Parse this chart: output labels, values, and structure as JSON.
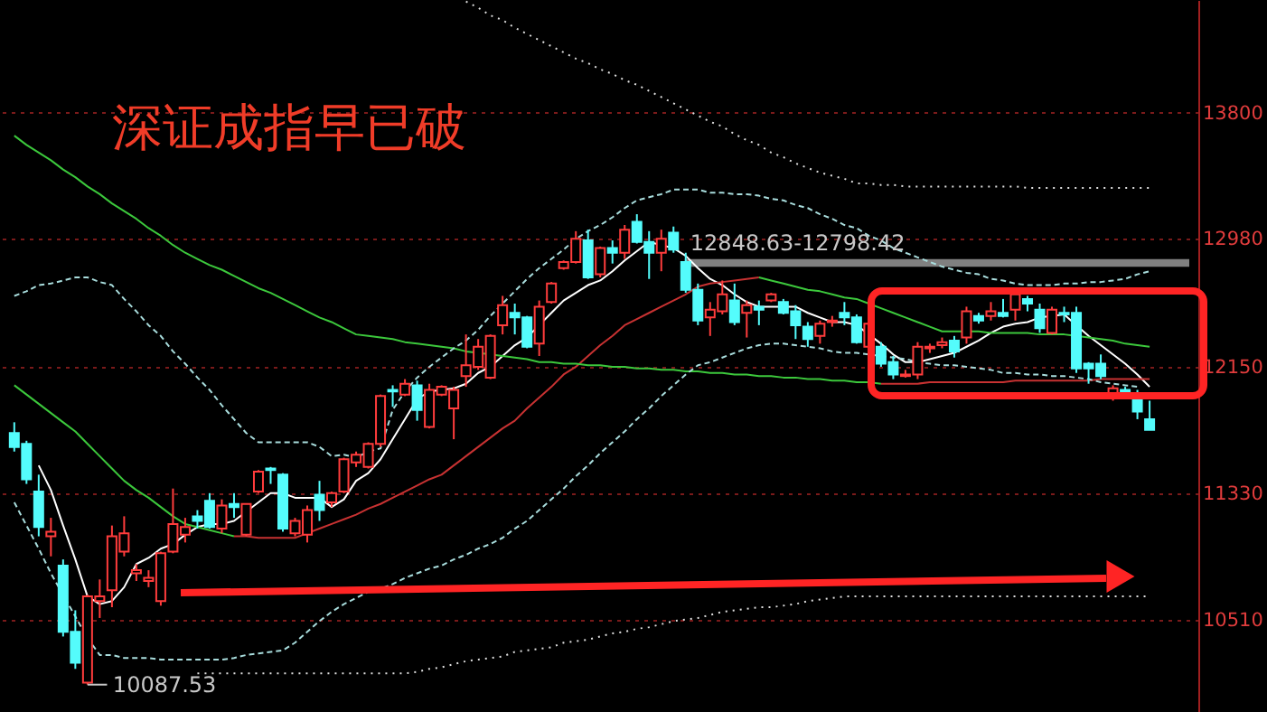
{
  "chart_data": {
    "type": "candlestick",
    "title": "深证成指早已破",
    "categories": [
      null,
      null,
      null,
      null,
      null,
      null,
      null,
      null,
      null,
      null,
      null,
      null,
      null,
      null,
      null,
      null,
      null,
      null,
      null,
      null,
      null,
      null,
      null,
      null,
      null,
      null,
      null,
      null,
      null,
      null,
      null,
      null,
      null,
      null,
      null,
      null,
      null,
      null,
      null,
      null,
      null,
      null,
      null,
      null,
      null,
      null,
      null,
      null,
      null,
      null,
      null,
      null,
      null,
      null,
      null,
      null,
      null,
      null,
      null,
      null,
      null,
      null,
      null,
      null,
      null,
      null,
      null,
      null,
      null,
      null,
      null,
      null,
      null,
      null,
      null,
      null,
      null,
      null,
      null,
      null,
      null,
      null,
      null,
      null,
      null,
      null,
      null,
      null,
      null,
      null,
      null,
      null,
      null,
      null
    ],
    "ohlc": [
      [
        11720,
        11790,
        11600,
        11630
      ],
      [
        11650,
        11670,
        11390,
        11420
      ],
      [
        11340,
        11450,
        11050,
        11110
      ],
      [
        11050,
        11170,
        10920,
        11080
      ],
      [
        10860,
        10900,
        10400,
        10430
      ],
      [
        10430,
        10570,
        10190,
        10230
      ],
      [
        10100,
        10670,
        10087.53,
        10660
      ],
      [
        10630,
        10770,
        10520,
        10660
      ],
      [
        10700,
        11120,
        10590,
        11050
      ],
      [
        10950,
        11180,
        10920,
        11070
      ],
      [
        10810,
        10870,
        10760,
        10830
      ],
      [
        10760,
        10830,
        10720,
        10780
      ],
      [
        10630,
        10950,
        10600,
        10940
      ],
      [
        10950,
        11360,
        10940,
        11130
      ],
      [
        11060,
        11170,
        11010,
        11110
      ],
      [
        11180,
        11220,
        11100,
        11150
      ],
      [
        11280,
        11330,
        11100,
        11110
      ],
      [
        11100,
        11290,
        11070,
        11250
      ],
      [
        11260,
        11330,
        11170,
        11240
      ],
      [
        11060,
        11260,
        11050,
        11260
      ],
      [
        11340,
        11480,
        11330,
        11470
      ],
      [
        11490,
        11500,
        11390,
        11480
      ],
      [
        11450,
        11460,
        11080,
        11100
      ],
      [
        11070,
        11170,
        11050,
        11150
      ],
      [
        11060,
        11250,
        11010,
        11220
      ],
      [
        11320,
        11410,
        11150,
        11220
      ],
      [
        11270,
        11340,
        11240,
        11330
      ],
      [
        11340,
        11560,
        11330,
        11550
      ],
      [
        11530,
        11600,
        11500,
        11580
      ],
      [
        11500,
        11660,
        11490,
        11650
      ],
      [
        11650,
        11970,
        11630,
        11960
      ],
      [
        12000,
        12030,
        11890,
        11990
      ],
      [
        11970,
        12070,
        11960,
        12040
      ],
      [
        12030,
        12060,
        11800,
        11870
      ],
      [
        11760,
        12040,
        11750,
        12000
      ],
      [
        11970,
        12030,
        11960,
        12020
      ],
      [
        11880,
        12020,
        11680,
        12000
      ],
      [
        12090,
        12360,
        12020,
        12160
      ],
      [
        12150,
        12330,
        12130,
        12280
      ],
      [
        12080,
        12360,
        12070,
        12350
      ],
      [
        12420,
        12610,
        12360,
        12550
      ],
      [
        12500,
        12560,
        12360,
        12470
      ],
      [
        12470,
        12480,
        12270,
        12280
      ],
      [
        12300,
        12580,
        12220,
        12540
      ],
      [
        12570,
        12700,
        12560,
        12690
      ],
      [
        12790,
        12840,
        12780,
        12830
      ],
      [
        12830,
        13030,
        12820,
        12980
      ],
      [
        12970,
        13040,
        12720,
        12730
      ],
      [
        12750,
        12930,
        12730,
        12920
      ],
      [
        12920,
        12970,
        12820,
        12890
      ],
      [
        12890,
        13070,
        12850,
        13040
      ],
      [
        13090,
        13140,
        12950,
        12960
      ],
      [
        12960,
        13030,
        12720,
        12890
      ],
      [
        12890,
        13040,
        12770,
        12980
      ],
      [
        13020,
        13060,
        12890,
        12910
      ],
      [
        12830,
        12890,
        12630,
        12650
      ],
      [
        12650,
        12690,
        12420,
        12450
      ],
      [
        12470,
        12570,
        12350,
        12520
      ],
      [
        12510,
        12710,
        12490,
        12620
      ],
      [
        12580,
        12690,
        12420,
        12440
      ],
      [
        12500,
        12580,
        12340,
        12550
      ],
      [
        12540,
        12580,
        12420,
        12520
      ],
      [
        12580,
        12630,
        12570,
        12620
      ],
      [
        12570,
        12590,
        12490,
        12500
      ],
      [
        12510,
        12550,
        12330,
        12420
      ],
      [
        12410,
        12440,
        12280,
        12330
      ],
      [
        12350,
        12450,
        12300,
        12430
      ],
      [
        12440,
        12480,
        12410,
        12450
      ],
      [
        12500,
        12570,
        12420,
        12470
      ],
      [
        12470,
        12490,
        12300,
        12310
      ],
      [
        12280,
        12470,
        12180,
        12430
      ],
      [
        12280,
        12310,
        12150,
        12170
      ],
      [
        12180,
        12220,
        12070,
        12100
      ],
      [
        12090,
        12130,
        12080,
        12100
      ],
      [
        12100,
        12310,
        12070,
        12280
      ],
      [
        12270,
        12300,
        12240,
        12280
      ],
      [
        12290,
        12340,
        12270,
        12310
      ],
      [
        12320,
        12350,
        12210,
        12250
      ],
      [
        12340,
        12540,
        12300,
        12510
      ],
      [
        12480,
        12500,
        12430,
        12450
      ],
      [
        12480,
        12570,
        12450,
        12510
      ],
      [
        12500,
        12590,
        12470,
        12480
      ],
      [
        12520,
        12630,
        12450,
        12620
      ],
      [
        12590,
        12610,
        12510,
        12560
      ],
      [
        12520,
        12560,
        12370,
        12400
      ],
      [
        12370,
        12540,
        12360,
        12520
      ],
      [
        12500,
        12540,
        12440,
        12490
      ],
      [
        12500,
        12540,
        12110,
        12140
      ],
      [
        12170,
        12180,
        12040,
        12140
      ],
      [
        12170,
        12230,
        12070,
        12090
      ],
      [
        11970,
        12030,
        11930,
        12010
      ],
      [
        12000,
        12020,
        11960,
        11990
      ],
      [
        11950,
        12000,
        11810,
        11860
      ],
      [
        11810,
        11930,
        11740,
        11740
      ]
    ],
    "colors": [
      "#54fcfc",
      "#54fcfc",
      "#54fcfc",
      "#ff3c3c",
      "#54fcfc",
      "#54fcfc",
      "#ff3c3c",
      "#ff3c3c",
      "#ff3c3c",
      "#ff3c3c",
      "#ff3c3c",
      "#ff3c3c",
      "#ff3c3c",
      "#ff3c3c",
      "#ff3c3c",
      "#54fcfc",
      "#54fcfc",
      "#ff3c3c",
      "#54fcfc",
      "#ff3c3c",
      "#ff3c3c",
      "#54fcfc",
      "#54fcfc",
      "#ff3c3c",
      "#ff3c3c",
      "#54fcfc",
      "#ff3c3c",
      "#ff3c3c",
      "#ff3c3c",
      "#ff3c3c",
      "#ff3c3c",
      "#54fcfc",
      "#ff3c3c",
      "#54fcfc",
      "#ff3c3c",
      "#ff3c3c",
      "#ff3c3c",
      "#ff3c3c",
      "#ff3c3c",
      "#ff3c3c",
      "#ff3c3c",
      "#54fcfc",
      "#54fcfc",
      "#ff3c3c",
      "#ff3c3c",
      "#ff3c3c",
      "#ff3c3c",
      "#54fcfc",
      "#ff3c3c",
      "#54fcfc",
      "#ff3c3c",
      "#54fcfc",
      "#54fcfc",
      "#ff3c3c",
      "#54fcfc",
      "#54fcfc",
      "#54fcfc",
      "#ff3c3c",
      "#ff3c3c",
      "#54fcfc",
      "#ff3c3c",
      "#54fcfc",
      "#ff3c3c",
      "#54fcfc",
      "#54fcfc",
      "#54fcfc",
      "#ff3c3c",
      "#ff3c3c",
      "#54fcfc",
      "#54fcfc",
      "#ff3c3c",
      "#54fcfc",
      "#54fcfc",
      "#ff3c3c",
      "#ff3c3c",
      "#ff3c3c",
      "#ff3c3c",
      "#54fcfc",
      "#ff3c3c",
      "#54fcfc",
      "#ff3c3c",
      "#54fcfc",
      "#ff3c3c",
      "#54fcfc",
      "#54fcfc",
      "#ff3c3c",
      "#54fcfc",
      "#54fcfc",
      "#54fcfc",
      "#54fcfc",
      "#ff3c3c",
      "#54fcfc",
      "#54fcfc",
      "#54fcfc"
    ],
    "series": [
      {
        "type": "line",
        "color": "#ffffff",
        "line_style": "solid",
        "values": [
          null,
          null,
          11510,
          11350,
          11120,
          10900,
          10660,
          10610,
          10630,
          10720,
          10870,
          10910,
          10970,
          11000,
          11060,
          11110,
          11130,
          11130,
          11150,
          11210,
          11270,
          11330,
          11330,
          11300,
          11300,
          11300,
          11240,
          11290,
          11410,
          11460,
          11550,
          11680,
          11810,
          11940,
          11990,
          12000,
          12010,
          12040,
          12110,
          12150,
          12220,
          12290,
          12340,
          12420,
          12500,
          12580,
          12630,
          12680,
          12710,
          12770,
          12840,
          12900,
          12960,
          12940,
          12920,
          12870,
          12790,
          12720,
          12680,
          12620,
          12570,
          12540,
          12540,
          12540,
          12540,
          12500,
          12470,
          12440,
          12440,
          12420,
          12360,
          12300,
          12230,
          12180,
          12180,
          12200,
          12220,
          12240,
          12280,
          12320,
          12370,
          12410,
          12430,
          12440,
          12470,
          12480,
          12490,
          12420,
          12350,
          12290,
          12230,
          12170,
          12100,
          12020
        ]
      },
      {
        "type": "line",
        "color": "#3cc83c",
        "line_style": "solid",
        "values": [
          12030,
          11970,
          11910,
          11850,
          11790,
          11730,
          11650,
          11570,
          11490,
          11410,
          11350,
          11300,
          11240,
          11180,
          11130,
          11110,
          11090,
          11070,
          11050,
          null,
          null,
          null,
          null,
          null,
          null,
          null,
          null,
          null,
          null,
          null,
          null,
          null,
          null,
          null,
          null,
          null,
          null,
          null,
          null,
          null,
          null,
          null,
          null,
          null,
          null,
          null,
          null,
          null,
          null,
          null,
          null,
          null,
          null,
          null,
          null,
          null,
          null,
          null,
          null,
          null,
          null,
          null,
          null,
          null,
          null,
          null,
          null,
          null,
          null,
          null,
          null,
          null,
          null,
          null,
          null,
          null,
          null,
          null,
          null,
          null,
          null,
          null,
          null,
          null,
          null,
          null,
          null,
          null,
          null,
          null,
          null,
          null,
          null,
          null
        ]
      },
      {
        "type": "line",
        "color": "#c83232",
        "line_style": "solid",
        "values": [
          null,
          null,
          null,
          null,
          null,
          null,
          null,
          null,
          null,
          null,
          null,
          null,
          null,
          null,
          null,
          null,
          null,
          null,
          11050,
          11050,
          11040,
          11040,
          11040,
          11040,
          11070,
          11100,
          11130,
          11160,
          11190,
          11230,
          11260,
          11300,
          11340,
          11380,
          11420,
          11450,
          11510,
          11570,
          11630,
          11690,
          11750,
          11800,
          11880,
          11950,
          12020,
          12100,
          12150,
          12220,
          12290,
          12350,
          12420,
          12460,
          12500,
          12540,
          12580,
          12620,
          12670,
          12690,
          12700,
          12710,
          12720,
          12730,
          null,
          null,
          null,
          null,
          null,
          null,
          null,
          null,
          null,
          null,
          null,
          null,
          null,
          null,
          null,
          null,
          null,
          null,
          null,
          null,
          null,
          null,
          null,
          null,
          null,
          null,
          null,
          null,
          null,
          null,
          null,
          null
        ]
      },
      {
        "type": "line",
        "color": "#3cc83c",
        "line_style": "solid",
        "values": [
          null,
          null,
          null,
          null,
          null,
          null,
          null,
          null,
          null,
          null,
          null,
          null,
          null,
          null,
          null,
          null,
          null,
          null,
          null,
          null,
          null,
          null,
          null,
          null,
          null,
          null,
          null,
          null,
          null,
          null,
          null,
          null,
          null,
          null,
          null,
          null,
          null,
          null,
          null,
          null,
          null,
          null,
          null,
          null,
          null,
          null,
          null,
          null,
          null,
          null,
          null,
          null,
          null,
          null,
          null,
          null,
          null,
          null,
          null,
          null,
          null,
          12730,
          12710,
          12690,
          12670,
          12650,
          12640,
          12620,
          12600,
          12590,
          12560,
          12530,
          12500,
          12470,
          12440,
          12410,
          12380,
          12380,
          12380,
          12380,
          12370,
          12370,
          12370,
          12370,
          12360,
          12360,
          12360,
          12350,
          12340,
          12330,
          12320,
          12300,
          12290,
          12280
        ]
      },
      {
        "type": "line",
        "color": "#3cc83c",
        "line_style": "solid",
        "values": [
          13650,
          13590,
          13540,
          13490,
          13430,
          13380,
          13320,
          13270,
          13210,
          13160,
          13110,
          13050,
          13000,
          12940,
          12890,
          12850,
          12810,
          12780,
          12740,
          12700,
          12660,
          12630,
          12590,
          12550,
          12510,
          12470,
          12440,
          12400,
          12360,
          12350,
          12340,
          12330,
          12310,
          12300,
          12290,
          12280,
          12270,
          12250,
          12240,
          12230,
          12220,
          12210,
          12200,
          12180,
          12180,
          12170,
          12170,
          12160,
          12160,
          12150,
          12150,
          12140,
          12140,
          12130,
          12130,
          12120,
          12120,
          12110,
          12110,
          12100,
          12100,
          12090,
          12090,
          12080,
          12080,
          12070,
          12070,
          12060,
          12060,
          12050,
          12050,
          12040,
          null,
          null,
          null,
          null,
          null,
          null,
          null,
          null,
          null,
          null,
          null,
          null,
          null,
          null,
          null,
          null,
          null,
          null,
          null,
          null,
          null,
          null
        ]
      },
      {
        "type": "line",
        "color": "#c83232",
        "line_style": "solid",
        "values": [
          null,
          null,
          null,
          null,
          null,
          null,
          null,
          null,
          null,
          null,
          null,
          null,
          null,
          null,
          null,
          null,
          null,
          null,
          null,
          null,
          null,
          null,
          null,
          null,
          null,
          null,
          null,
          null,
          null,
          null,
          null,
          null,
          null,
          null,
          null,
          null,
          null,
          null,
          null,
          null,
          null,
          null,
          null,
          null,
          null,
          null,
          null,
          null,
          null,
          null,
          null,
          null,
          null,
          null,
          null,
          null,
          null,
          null,
          null,
          null,
          null,
          null,
          null,
          null,
          null,
          null,
          null,
          null,
          null,
          null,
          null,
          12040,
          12040,
          12040,
          12040,
          12050,
          12050,
          12050,
          12050,
          12050,
          12050,
          12050,
          12060,
          12060,
          12060,
          12060,
          12060,
          12060,
          12060,
          12070,
          12070,
          12070,
          12070,
          12070
        ]
      },
      {
        "type": "line",
        "color": "#a8dcdc",
        "line_style": "dashed",
        "values": [
          12610,
          12640,
          12680,
          12690,
          12710,
          12730,
          12730,
          12700,
          12680,
          12590,
          12510,
          12420,
          12350,
          12250,
          12170,
          12080,
          12000,
          11900,
          11810,
          11720,
          11660,
          11660,
          11660,
          11660,
          11660,
          11630,
          11570,
          11580,
          11560,
          11600,
          11620,
          11870,
          11990,
          12080,
          12150,
          12210,
          12270,
          12320,
          12390,
          12480,
          12560,
          12640,
          12720,
          12790,
          12850,
          12910,
          12980,
          13030,
          13070,
          13120,
          13180,
          13230,
          13250,
          13270,
          13300,
          13300,
          13300,
          13280,
          13280,
          13270,
          13270,
          13260,
          13240,
          13230,
          13200,
          13180,
          13140,
          13110,
          13070,
          13050,
          13000,
          12970,
          12920,
          12890,
          12860,
          12830,
          12800,
          12780,
          12760,
          12750,
          12720,
          12710,
          12690,
          12680,
          12680,
          12680,
          12690,
          12690,
          12700,
          12700,
          12710,
          12720,
          12750,
          12770
        ]
      },
      {
        "type": "line",
        "color": "#a8dcdc",
        "line_style": "dashed",
        "values": [
          11270,
          11120,
          10970,
          10810,
          10670,
          10530,
          10390,
          10280,
          10280,
          10260,
          10260,
          10260,
          10250,
          10250,
          10250,
          10250,
          10250,
          10250,
          10260,
          10280,
          10290,
          10300,
          10310,
          10360,
          10430,
          10500,
          10560,
          10610,
          10650,
          10690,
          10710,
          10740,
          10780,
          10810,
          10840,
          10860,
          10900,
          10930,
          10970,
          11000,
          11040,
          11100,
          11150,
          11220,
          11290,
          11360,
          11440,
          11510,
          11590,
          11660,
          11730,
          11810,
          11880,
          11960,
          12030,
          12100,
          12160,
          12180,
          12210,
          12240,
          12270,
          12290,
          12300,
          12300,
          12290,
          12280,
          12270,
          12250,
          12240,
          12240,
          12230,
          12220,
          12210,
          12200,
          12180,
          12170,
          12160,
          12160,
          12150,
          12140,
          12130,
          12110,
          12110,
          12100,
          12100,
          12090,
          12090,
          12080,
          12070,
          12050,
          12040,
          12030,
          12020,
          null
        ]
      },
      {
        "type": "line",
        "color": "#e0e0e0",
        "line_style": "dotted",
        "values": [
          null,
          null,
          null,
          null,
          null,
          null,
          null,
          null,
          null,
          null,
          null,
          null,
          null,
          null,
          null,
          null,
          null,
          null,
          null,
          null,
          null,
          null,
          null,
          null,
          null,
          null,
          null,
          null,
          null,
          null,
          null,
          null,
          null,
          null,
          null,
          null,
          null,
          14520,
          14480,
          14430,
          14400,
          14350,
          14310,
          14270,
          14230,
          14190,
          14150,
          14120,
          14080,
          14050,
          14010,
          13980,
          13940,
          13900,
          13860,
          13820,
          13780,
          13740,
          13710,
          13660,
          13620,
          13590,
          13540,
          13510,
          13470,
          13440,
          13410,
          13390,
          13370,
          13340,
          13340,
          13330,
          13330,
          13320,
          13320,
          13320,
          13320,
          13320,
          13320,
          13320,
          13320,
          13320,
          13320,
          13310,
          13310,
          13310,
          13310,
          13310,
          13310,
          13310,
          13310,
          13310,
          13310,
          13310
        ]
      },
      {
        "type": "line",
        "color": "#e0e0e0",
        "line_style": "dotted",
        "values": [
          null,
          null,
          null,
          null,
          null,
          null,
          null,
          null,
          null,
          null,
          null,
          null,
          null,
          null,
          null,
          10160,
          10160,
          10160,
          10160,
          10160,
          10160,
          10160,
          10160,
          10160,
          10160,
          10160,
          10160,
          10160,
          10160,
          10160,
          10160,
          10160,
          10160,
          10170,
          10190,
          10200,
          10220,
          10240,
          10250,
          10260,
          10270,
          10300,
          10310,
          10320,
          10330,
          10360,
          10370,
          10380,
          10400,
          10420,
          10430,
          10450,
          10460,
          10480,
          10500,
          10510,
          10520,
          10540,
          10560,
          10570,
          10580,
          10590,
          10590,
          10600,
          10610,
          10630,
          10640,
          10650,
          10660,
          10660,
          10660,
          10660,
          10660,
          10660,
          10660,
          10660,
          10660,
          10660,
          10660,
          10660,
          10660,
          10660,
          10660,
          10660,
          10660,
          10660,
          10660,
          10660,
          10660,
          10660,
          10660,
          10660,
          10660,
          10660
        ]
      }
    ],
    "ylim": [
      9910,
      14530
    ],
    "yticks": [
      13800,
      12980,
      12150,
      11330,
      10510
    ],
    "grid": "y",
    "tick_labels": "y",
    "bands": [
      {
        "axis": "y",
        "from": 12798.42,
        "to": 12848.63,
        "label": "12848.63-12798.42",
        "color": "#808080"
      }
    ],
    "annotations": [
      "10087.53"
    ]
  }
}
